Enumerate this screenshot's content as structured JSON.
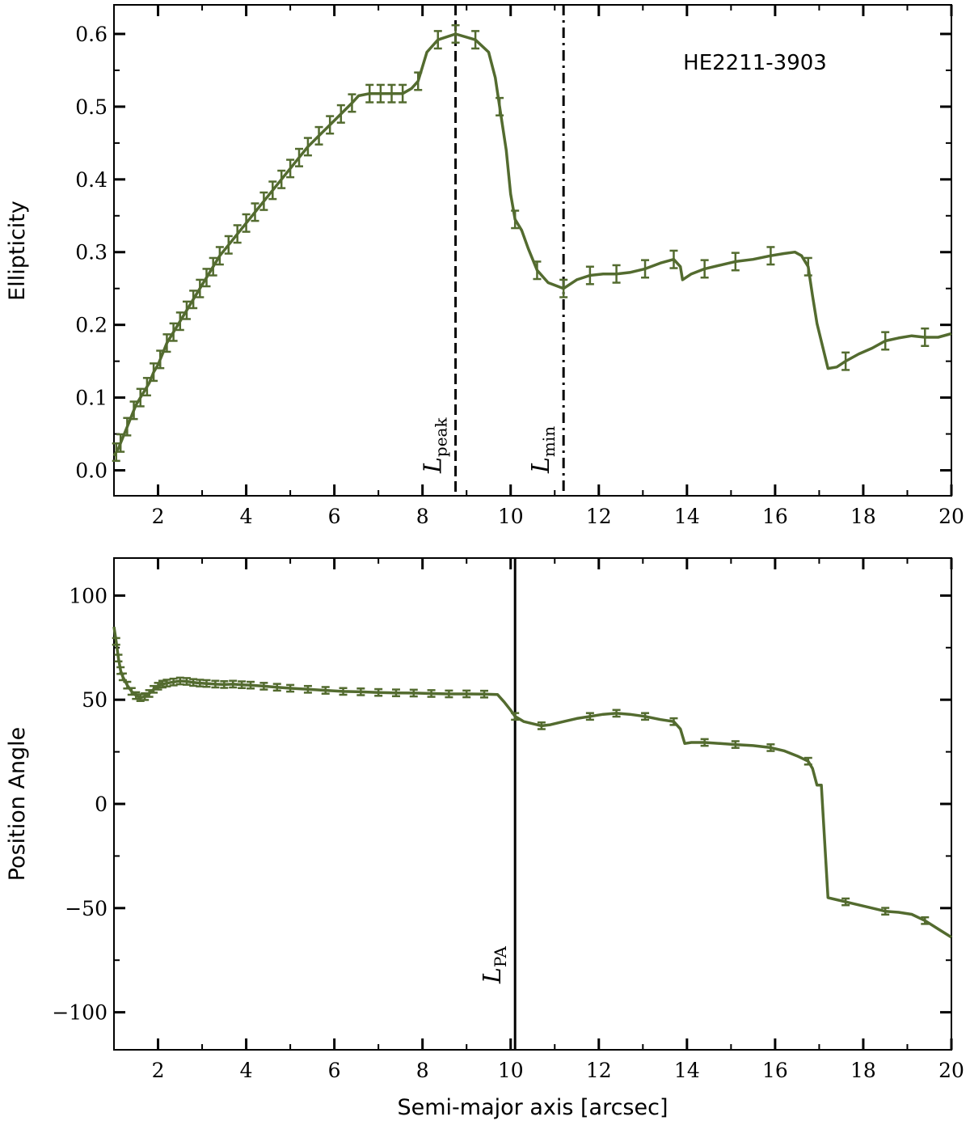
{
  "chart_data": [
    {
      "type": "line",
      "panel": "top",
      "ylabel": "Ellipticity",
      "xlabel": "",
      "xlim": [
        1,
        20
      ],
      "ylim": [
        -0.035,
        0.64
      ],
      "xticks": [
        2,
        4,
        6,
        8,
        10,
        12,
        14,
        16,
        18,
        20
      ],
      "yticks": [
        0.0,
        0.1,
        0.2,
        0.3,
        0.4,
        0.5,
        0.6
      ],
      "ytick_labels": [
        "0.0",
        "0.1",
        "0.2",
        "0.3",
        "0.4",
        "0.5",
        "0.6"
      ],
      "annotation": "HE2211-3903",
      "line_color": "#536b2f",
      "vlines": [
        {
          "x": 8.75,
          "style": "dashed",
          "label_main": "L",
          "label_sub": "peak"
        },
        {
          "x": 11.2,
          "style": "dashdot",
          "label_main": "L",
          "label_sub": "min"
        }
      ],
      "x": [
        1.0,
        1.1,
        1.2,
        1.3,
        1.4,
        1.5,
        1.6,
        1.7,
        1.8,
        1.9,
        2.0,
        2.1,
        2.2,
        2.35,
        2.5,
        2.65,
        2.8,
        2.95,
        3.1,
        3.25,
        3.4,
        3.6,
        3.8,
        4.0,
        4.2,
        4.4,
        4.6,
        4.8,
        5.0,
        5.2,
        5.4,
        5.65,
        5.9,
        6.15,
        6.4,
        6.55,
        6.8,
        7.05,
        7.3,
        7.55,
        7.75,
        7.9,
        8.0,
        8.1,
        8.35,
        8.75,
        9.2,
        9.5,
        9.65,
        9.75,
        9.9,
        10.0,
        10.1,
        10.25,
        10.4,
        10.6,
        10.85,
        11.2,
        11.5,
        11.8,
        12.1,
        12.4,
        12.7,
        13.05,
        13.4,
        13.7,
        13.85,
        13.9,
        14.1,
        14.4,
        14.75,
        15.1,
        15.5,
        15.9,
        16.2,
        16.45,
        16.6,
        16.75,
        16.85,
        16.95,
        17.2,
        17.4,
        17.6,
        17.9,
        18.2,
        18.5,
        18.8,
        19.1,
        19.4,
        19.7,
        20.0
      ],
      "y": [
        0.02,
        0.03,
        0.045,
        0.06,
        0.075,
        0.09,
        0.1,
        0.11,
        0.12,
        0.135,
        0.145,
        0.16,
        0.175,
        0.19,
        0.205,
        0.22,
        0.235,
        0.25,
        0.265,
        0.28,
        0.295,
        0.31,
        0.325,
        0.34,
        0.355,
        0.37,
        0.385,
        0.4,
        0.415,
        0.43,
        0.445,
        0.46,
        0.475,
        0.49,
        0.505,
        0.515,
        0.518,
        0.518,
        0.518,
        0.518,
        0.525,
        0.535,
        0.555,
        0.575,
        0.592,
        0.6,
        0.592,
        0.575,
        0.54,
        0.5,
        0.44,
        0.38,
        0.345,
        0.33,
        0.305,
        0.275,
        0.258,
        0.25,
        0.262,
        0.268,
        0.27,
        0.27,
        0.272,
        0.277,
        0.285,
        0.29,
        0.28,
        0.262,
        0.27,
        0.277,
        0.282,
        0.287,
        0.29,
        0.295,
        0.298,
        0.3,
        0.295,
        0.28,
        0.24,
        0.202,
        0.14,
        0.142,
        0.15,
        0.16,
        0.168,
        0.178,
        0.182,
        0.185,
        0.183,
        0.183,
        0.188
      ],
      "error_x": [
        1.05,
        1.15,
        1.3,
        1.45,
        1.6,
        1.75,
        1.9,
        2.05,
        2.2,
        2.35,
        2.5,
        2.65,
        2.8,
        2.95,
        3.1,
        3.25,
        3.4,
        3.6,
        3.8,
        4.0,
        4.2,
        4.4,
        4.6,
        4.8,
        5.0,
        5.2,
        5.4,
        5.65,
        5.9,
        6.15,
        6.4,
        6.8,
        7.05,
        7.3,
        7.55,
        7.9,
        8.35,
        8.75,
        9.2,
        9.75,
        10.1,
        10.6,
        11.2,
        11.8,
        12.4,
        13.05,
        13.7,
        14.4,
        15.1,
        15.9,
        16.75,
        17.6,
        18.5,
        19.4
      ],
      "error_half": 0.012
    },
    {
      "type": "line",
      "panel": "bottom",
      "ylabel": "Position Angle",
      "xlabel": "Semi-major axis [arcsec]",
      "xlim": [
        1,
        20
      ],
      "ylim": [
        -118,
        118
      ],
      "xticks": [
        2,
        4,
        6,
        8,
        10,
        12,
        14,
        16,
        18,
        20
      ],
      "yticks": [
        -100,
        -50,
        0,
        50,
        100
      ],
      "ytick_labels": [
        "−100",
        "−50",
        "0",
        "50",
        "100"
      ],
      "line_color": "#536b2f",
      "vlines": [
        {
          "x": 10.1,
          "style": "solid",
          "label_main": "L",
          "label_sub": "PA"
        }
      ],
      "x": [
        1.0,
        1.05,
        1.1,
        1.15,
        1.2,
        1.3,
        1.4,
        1.5,
        1.6,
        1.7,
        1.8,
        1.9,
        2.0,
        2.1,
        2.2,
        2.35,
        2.5,
        2.65,
        2.8,
        2.95,
        3.1,
        3.3,
        3.5,
        3.7,
        3.9,
        4.1,
        4.4,
        4.7,
        5.0,
        5.4,
        5.8,
        6.2,
        6.6,
        7.0,
        7.4,
        7.8,
        8.2,
        8.6,
        9.0,
        9.4,
        9.7,
        9.85,
        10.0,
        10.1,
        10.3,
        10.5,
        10.7,
        10.9,
        11.2,
        11.5,
        11.8,
        12.1,
        12.4,
        12.7,
        13.05,
        13.4,
        13.7,
        13.85,
        13.95,
        14.1,
        14.4,
        14.75,
        15.1,
        15.5,
        15.9,
        16.2,
        16.5,
        16.75,
        16.85,
        16.95,
        17.05,
        17.2,
        17.4,
        17.6,
        17.9,
        18.2,
        18.5,
        18.8,
        19.1,
        19.4,
        19.7,
        20.0
      ],
      "y": [
        85,
        78,
        70,
        64,
        61,
        57,
        54,
        52,
        51,
        51.5,
        53,
        55,
        56.5,
        57.5,
        58,
        58.5,
        59,
        58.8,
        58.3,
        58,
        57.8,
        57.5,
        57.3,
        57.5,
        57.2,
        57,
        56.5,
        56,
        55.5,
        55,
        54.5,
        54,
        53.8,
        53.5,
        53.3,
        53.2,
        53,
        52.8,
        52.8,
        52.7,
        52.5,
        49,
        45,
        42,
        39.5,
        38.5,
        37.5,
        38,
        39.5,
        41,
        42,
        43,
        43.5,
        43,
        42,
        40.5,
        39.5,
        36,
        29,
        29.5,
        29.5,
        29,
        28.5,
        28,
        27,
        25.5,
        23,
        20.5,
        17,
        9,
        9,
        -45,
        -46,
        -47,
        -48.5,
        -50,
        -51.5,
        -52,
        -53,
        -56,
        -60,
        -64
      ],
      "error_x": [
        1.05,
        1.1,
        1.15,
        1.2,
        1.3,
        1.4,
        1.5,
        1.6,
        1.7,
        1.8,
        1.9,
        2.0,
        2.1,
        2.2,
        2.35,
        2.5,
        2.65,
        2.8,
        2.95,
        3.1,
        3.3,
        3.5,
        3.7,
        3.9,
        4.1,
        4.4,
        4.7,
        5.0,
        5.4,
        5.8,
        6.2,
        6.6,
        7.0,
        7.4,
        7.8,
        8.2,
        8.6,
        9.0,
        9.4,
        10.1,
        10.7,
        11.8,
        12.4,
        13.05,
        13.7,
        14.4,
        15.1,
        15.9,
        16.75,
        17.6,
        18.5,
        19.4
      ],
      "error_half": 1.6
    }
  ]
}
